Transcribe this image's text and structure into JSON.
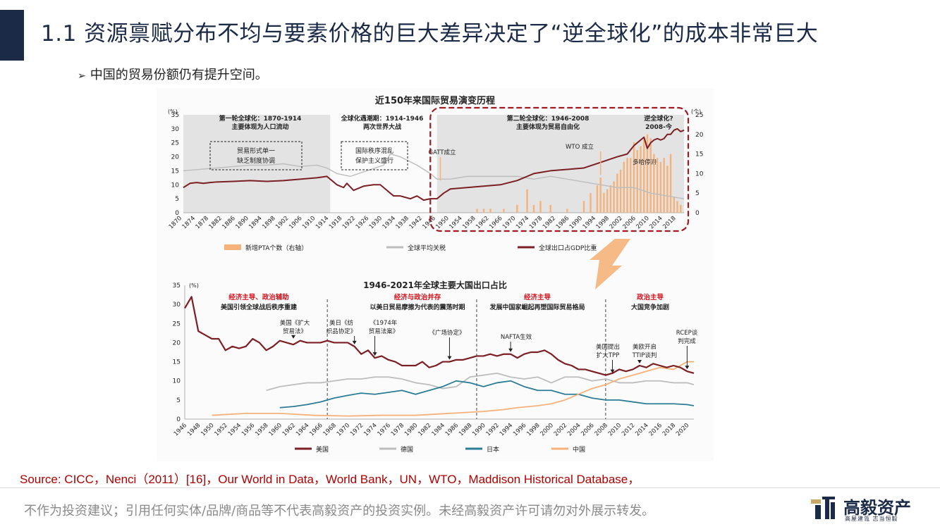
{
  "header": {
    "title": "1.1 资源禀赋分布不均与要素价格的巨大差异决定了“逆全球化”的成本非常巨大",
    "bullet_arrow": "➢",
    "bullet": "中国的贸易份额仍有提升空间。"
  },
  "colors": {
    "title_bar": "#1b2a47",
    "usa": "#7b1f24",
    "germany": "#bdbdbd",
    "japan": "#2b7c94",
    "china": "#f5b27a",
    "pta_bar": "#f5b27a",
    "tariff": "#bdbdbd",
    "export_gdp": "#7b1f24",
    "annotation_red": "#d0101a",
    "dash_box": "#a01c22",
    "arrow": "#f5b27a"
  },
  "chart_data": [
    {
      "type": "line",
      "title": "近150年来国际贸易演变历程",
      "y_unit_left": "(%)",
      "y_unit_right": "(个)",
      "ylim_left": [
        0,
        35
      ],
      "ylim_right": [
        0,
        25
      ],
      "yticks_left": [
        "0",
        "5",
        "10",
        "15",
        "20",
        "25",
        "30",
        "35"
      ],
      "yticks_right": [
        "0",
        "5",
        "10",
        "15",
        "20",
        "25"
      ],
      "xlim": [
        1870,
        2020
      ],
      "xticks": [
        "1870",
        "1874",
        "1878",
        "1882",
        "1886",
        "1890",
        "1894",
        "1898",
        "1902",
        "1906",
        "1910",
        "1914",
        "1918",
        "1922",
        "1926",
        "1930",
        "1934",
        "1938",
        "1942",
        "1946",
        "1950",
        "1954",
        "1958",
        "1962",
        "1966",
        "1970",
        "1974",
        "1978",
        "1982",
        "1986",
        "1990",
        "1994",
        "1998",
        "2002",
        "2006",
        "2010",
        "2014",
        "2018"
      ],
      "shaded_periods": [
        [
          1870,
          1914
        ],
        [
          1946,
          2020
        ]
      ],
      "legend_position": "bottom",
      "legend": [
        "新增PTA个数（右轴）",
        "全球平均关税",
        "全球出口占GDP比重"
      ],
      "period_labels": [
        {
          "text": "第一轮全球化：1870-1914",
          "sub": "主要体现为人口流动"
        },
        {
          "text": "全球化遇潮期：1914-1946",
          "sub": "两次世界大战"
        },
        {
          "text": "第二轮全球化：1946-2008",
          "sub": "主要体现为贸易自由化"
        },
        {
          "text": "逆全球化?",
          "sub": "2008-今"
        }
      ],
      "boxed_notes": [
        {
          "text": "贸易形式单一",
          "sub": "缺乏制度协调"
        },
        {
          "text": "国际秩序混乱",
          "sub": "保护主义盛行"
        }
      ],
      "annotations": [
        {
          "text": "GATT成立",
          "x": 1947
        },
        {
          "text": "WTO 成立",
          "x": 1995
        },
        {
          "text": "多哈停滞",
          "x": 2011
        }
      ],
      "series": [
        {
          "name": "全球出口占GDP比重",
          "axis": "left",
          "x": [
            1870,
            1872,
            1874,
            1876,
            1878,
            1880,
            1885,
            1890,
            1895,
            1900,
            1905,
            1910,
            1913,
            1914,
            1916,
            1918,
            1919,
            1921,
            1924,
            1927,
            1929,
            1931,
            1933,
            1935,
            1938,
            1940,
            1942,
            1944,
            1946,
            1948,
            1950,
            1955,
            1960,
            1965,
            1970,
            1973,
            1975,
            1980,
            1985,
            1990,
            1995,
            2000,
            2003,
            2005,
            2007,
            2008,
            2009,
            2010,
            2011,
            2012,
            2013,
            2014,
            2015,
            2016,
            2017,
            2018,
            2019,
            2020
          ],
          "values": [
            9,
            10.5,
            10.8,
            10.5,
            10.8,
            11,
            11.2,
            11.5,
            11.2,
            11.5,
            12,
            12.5,
            13,
            12,
            10,
            9,
            10.5,
            8,
            9.5,
            10,
            10,
            8,
            6,
            6,
            5,
            6,
            4.5,
            5,
            5,
            7,
            8.5,
            9,
            9.5,
            10,
            11.5,
            13,
            14,
            15,
            15.5,
            16,
            18,
            20,
            21,
            24,
            26,
            27,
            23,
            25,
            26,
            26.5,
            26,
            26.5,
            28,
            28,
            29.5,
            30,
            29,
            29.5
          ]
        },
        {
          "name": "全球平均关税",
          "axis": "left",
          "x": [
            1870,
            1875,
            1880,
            1885,
            1890,
            1895,
            1900,
            1905,
            1910,
            1913,
            1916,
            1920,
            1925,
            1930,
            1932,
            1935,
            1940,
            1944,
            1946,
            1950,
            1955,
            1960,
            1965,
            1970,
            1975,
            1980,
            1985,
            1990,
            1995,
            2000,
            2005,
            2010,
            2015,
            2020
          ],
          "values": [
            15,
            15.5,
            16,
            16.5,
            17,
            17,
            17.5,
            16.5,
            17,
            16,
            14,
            13,
            15,
            17,
            21,
            20,
            17,
            14,
            12,
            12,
            13,
            13,
            13,
            13,
            12,
            13,
            12,
            11,
            10,
            9,
            9,
            7,
            6,
            5
          ]
        },
        {
          "name": "新增PTA个数（右轴）",
          "axis": "right",
          "x": [
            1958,
            1960,
            1962,
            1966,
            1970,
            1973,
            1975,
            1977,
            1980,
            1985,
            1990,
            1992,
            1994,
            1995,
            1996,
            1997,
            1998,
            1999,
            2000,
            2001,
            2002,
            2003,
            2004,
            2005,
            2006,
            2007,
            2008,
            2009,
            2010,
            2011,
            2012,
            2013,
            2014,
            2015,
            2016,
            2017,
            2018,
            2019
          ],
          "values": [
            1,
            1,
            1,
            1,
            2,
            6,
            2,
            3,
            2,
            1,
            3,
            5,
            7,
            9,
            5,
            6,
            7,
            8,
            10,
            11,
            13,
            14,
            14,
            18,
            16,
            17,
            19,
            20,
            19,
            15,
            14,
            13,
            14,
            12,
            15,
            4,
            3,
            2
          ]
        }
      ]
    },
    {
      "type": "line",
      "title": "1946-2021年全球主要大国出口占比",
      "y_unit": "(%)",
      "ylim": [
        0,
        35
      ],
      "yticks": [
        "0",
        "5",
        "10",
        "15",
        "20",
        "25",
        "30",
        "35"
      ],
      "xlim": [
        1946,
        2021
      ],
      "xticks": [
        "1946",
        "1948",
        "1950",
        "1952",
        "1954",
        "1956",
        "1958",
        "1960",
        "1962",
        "1964",
        "1966",
        "1968",
        "1970",
        "1972",
        "1974",
        "1976",
        "1978",
        "1980",
        "1982",
        "1984",
        "1986",
        "1988",
        "1990",
        "1992",
        "1994",
        "1996",
        "1998",
        "2000",
        "2002",
        "2004",
        "2006",
        "2008",
        "2010",
        "2012",
        "2014",
        "2016",
        "2018",
        "2020"
      ],
      "dividers": [
        1967,
        1989,
        2008
      ],
      "legend_position": "bottom",
      "legend": [
        "美国",
        "德国",
        "日本",
        "中国"
      ],
      "phase_labels": [
        {
          "text": "经济主导、政治辅助",
          "sub": "美国引领全球战后秩序重建"
        },
        {
          "text": "经济与政治并存",
          "sub": "以美日贸易摩擦为代表的震荡时期"
        },
        {
          "text": "经济主导",
          "sub": "发展中国家崛起再塑国际贸易格局"
        },
        {
          "text": "政治主导",
          "sub": "大国竞争加剧"
        }
      ],
      "annotations": [
        {
          "text": "美国《扩大",
          "sub": "贸易法》",
          "x": 1962
        },
        {
          "text": "美日《纺",
          "sub": "织品协定》",
          "x": 1971
        },
        {
          "text": "《1974年",
          "sub": "贸易法案》",
          "x": 1974
        },
        {
          "text": "《广场协定》",
          "x": 1985
        },
        {
          "text": "NAFTA生效",
          "x": 1994
        },
        {
          "text": "美国提出",
          "sub": "扩大TPP",
          "x": 2009
        },
        {
          "text": "美欧开启",
          "sub": "TTIP谈判",
          "x": 2013
        },
        {
          "text": "RCEP谈",
          "sub": "判完成",
          "x": 2020
        }
      ],
      "series": [
        {
          "name": "美国",
          "x": [
            1946,
            1947,
            1948,
            1949,
            1950,
            1951,
            1952,
            1953,
            1954,
            1955,
            1956,
            1957,
            1958,
            1959,
            1960,
            1961,
            1962,
            1963,
            1964,
            1965,
            1966,
            1967,
            1968,
            1969,
            1970,
            1971,
            1972,
            1973,
            1974,
            1975,
            1976,
            1977,
            1978,
            1979,
            1980,
            1981,
            1982,
            1983,
            1984,
            1985,
            1986,
            1987,
            1988,
            1989,
            1990,
            1991,
            1992,
            1993,
            1994,
            1995,
            1996,
            1997,
            1998,
            1999,
            2000,
            2001,
            2002,
            2003,
            2004,
            2005,
            2006,
            2007,
            2008,
            2009,
            2010,
            2011,
            2012,
            2013,
            2014,
            2015,
            2016,
            2017,
            2018,
            2019,
            2020,
            2021
          ],
          "values": [
            29,
            32,
            23,
            22,
            21,
            21,
            18,
            19,
            18.5,
            19,
            21,
            20,
            18,
            19,
            20.5,
            20,
            19.5,
            20.5,
            20,
            20,
            20,
            20.5,
            20,
            20,
            20,
            19,
            17,
            18,
            16,
            16.5,
            15.5,
            15,
            14,
            14,
            14,
            15,
            13.5,
            14,
            15,
            15,
            15.5,
            15.5,
            16,
            16.5,
            16.5,
            17,
            16.5,
            17,
            17,
            16,
            17,
            17.5,
            17.5,
            18,
            17,
            15.5,
            14.5,
            14,
            13,
            13,
            12.5,
            12,
            11.5,
            12,
            13,
            12.5,
            13,
            14,
            13.5,
            14.5,
            14,
            13.5,
            14,
            13.5,
            12.5,
            12
          ]
        },
        {
          "name": "德国",
          "x": [
            1958,
            1960,
            1962,
            1964,
            1966,
            1968,
            1970,
            1972,
            1974,
            1976,
            1978,
            1980,
            1982,
            1984,
            1986,
            1988,
            1990,
            1992,
            1994,
            1996,
            1998,
            2000,
            2002,
            2004,
            2006,
            2008,
            2010,
            2012,
            2014,
            2016,
            2018,
            2020,
            2021
          ],
          "values": [
            7.5,
            8.5,
            9,
            9.5,
            9.5,
            10,
            10.5,
            10.5,
            11,
            11,
            10.5,
            9.5,
            9,
            8,
            8.5,
            11,
            11.5,
            12,
            11,
            10.5,
            11,
            9.5,
            11,
            11,
            10,
            10.5,
            9.5,
            9.5,
            10,
            10,
            9.5,
            9.5,
            9
          ]
        },
        {
          "name": "日本",
          "x": [
            1960,
            1962,
            1964,
            1966,
            1968,
            1970,
            1972,
            1974,
            1976,
            1978,
            1980,
            1982,
            1984,
            1986,
            1988,
            1990,
            1992,
            1994,
            1996,
            1998,
            2000,
            2002,
            2004,
            2006,
            2008,
            2010,
            2012,
            2014,
            2016,
            2018,
            2020,
            2021
          ],
          "values": [
            3,
            3.3,
            3.8,
            4.5,
            5.5,
            6.2,
            6.8,
            6.5,
            7,
            7.5,
            6.5,
            7.5,
            8.5,
            10,
            9.5,
            8.5,
            9.5,
            10,
            8.5,
            7.5,
            7.5,
            6.5,
            6.5,
            5.5,
            5,
            5,
            4.5,
            4,
            4,
            4,
            3.8,
            3.5
          ]
        },
        {
          "name": "中国",
          "x": [
            1950,
            1955,
            1960,
            1965,
            1970,
            1975,
            1978,
            1980,
            1985,
            1990,
            1993,
            1995,
            1998,
            2000,
            2002,
            2004,
            2006,
            2008,
            2010,
            2012,
            2014,
            2016,
            2018,
            2020,
            2021
          ],
          "values": [
            1,
            1.5,
            1.5,
            1,
            0.8,
            1,
            1,
            1,
            1.5,
            2,
            2.5,
            3,
            3.5,
            4,
            5,
            6.5,
            8,
            9,
            10.5,
            11.5,
            12.5,
            13.5,
            13,
            15,
            15
          ]
        }
      ]
    }
  ],
  "source": "Source: CICC，Nenci（2011）[16]，Our World in Data，World Bank，UN，WTO，Maddison Historical Database，",
  "footer": {
    "disclaimer": "不作为投资建议；引用任何实体/品牌/商品等不代表高毅资产的投资实例。未经高毅资产许可请勿对外展示转发。",
    "brand": "高毅资产",
    "brand_sub": "高屋建瓴 志当恒毅"
  }
}
